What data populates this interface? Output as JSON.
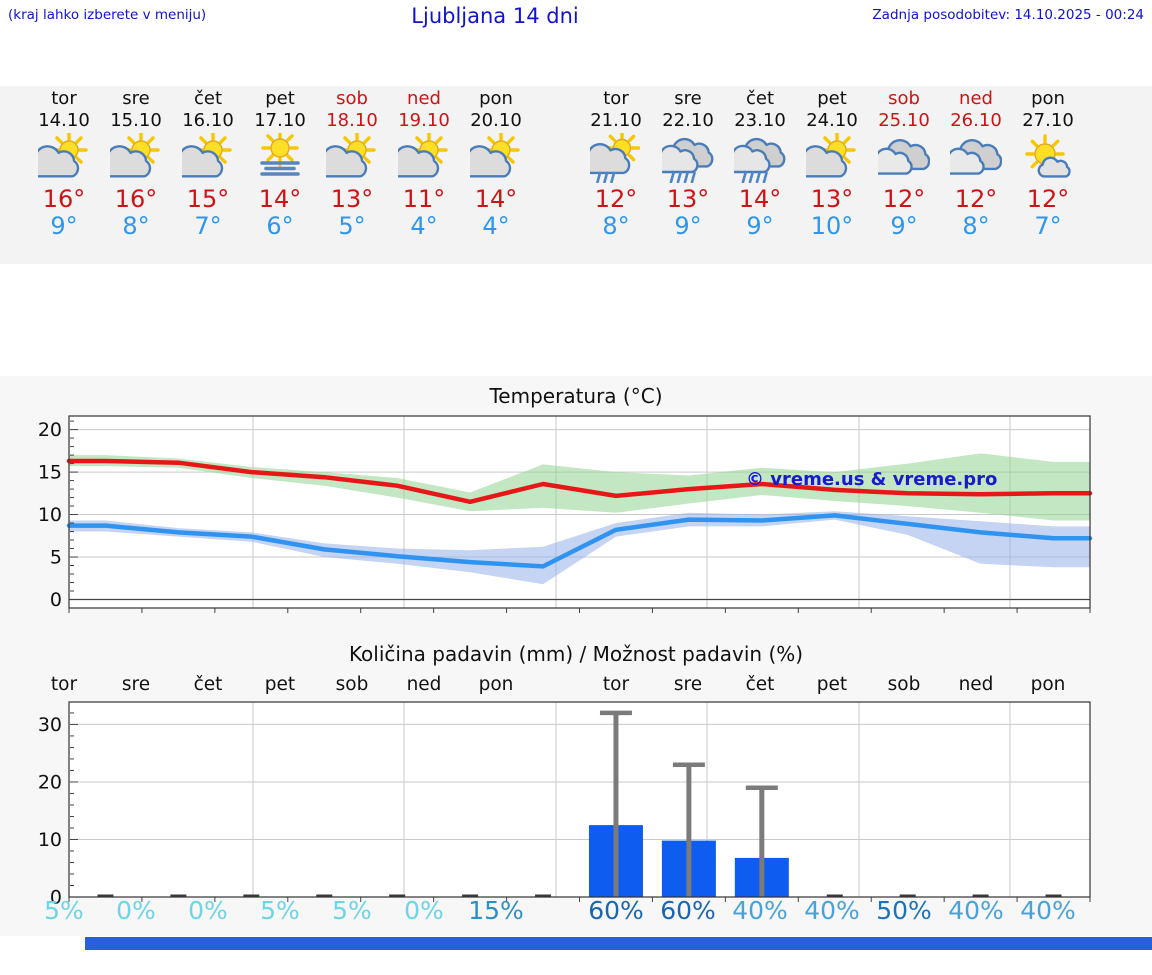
{
  "page": {
    "note": "(kraj lahko izberete v meniju)",
    "title": "Ljubljana 14 dni",
    "updated": "Zadnja posodobitev: 14.10.2025 - 00:24"
  },
  "colors": {
    "link_blue": "#1212cf",
    "day_black": "#111111",
    "weekend_red": "#cc1414",
    "high_red": "#cc1414",
    "low_blue": "#2d96f0",
    "bottom_bar": "#2b5fd9"
  },
  "forecast": {
    "days": [
      {
        "name": "tor",
        "date": "14.10",
        "weekend": false,
        "icon": "sun-cloud",
        "high": "16°",
        "low": "9°"
      },
      {
        "name": "sre",
        "date": "15.10",
        "weekend": false,
        "icon": "sun-cloud",
        "high": "16°",
        "low": "8°"
      },
      {
        "name": "čet",
        "date": "16.10",
        "weekend": false,
        "icon": "sun-cloud",
        "high": "15°",
        "low": "7°"
      },
      {
        "name": "pet",
        "date": "17.10",
        "weekend": false,
        "icon": "fog-sun",
        "high": "14°",
        "low": "6°"
      },
      {
        "name": "sob",
        "date": "18.10",
        "weekend": true,
        "icon": "sun-cloud",
        "high": "13°",
        "low": "5°"
      },
      {
        "name": "ned",
        "date": "19.10",
        "weekend": true,
        "icon": "sun-cloud",
        "high": "11°",
        "low": "4°"
      },
      {
        "name": "pon",
        "date": "20.10",
        "weekend": false,
        "icon": "sun-cloud",
        "high": "14°",
        "low": "4°"
      },
      {
        "name": "tor",
        "date": "21.10",
        "weekend": false,
        "icon": "sun-cloud-rain",
        "high": "12°",
        "low": "8°"
      },
      {
        "name": "sre",
        "date": "22.10",
        "weekend": false,
        "icon": "clouds-rain",
        "high": "13°",
        "low": "9°"
      },
      {
        "name": "čet",
        "date": "23.10",
        "weekend": false,
        "icon": "clouds-rain",
        "high": "14°",
        "low": "9°"
      },
      {
        "name": "pet",
        "date": "24.10",
        "weekend": false,
        "icon": "sun-cloud",
        "high": "13°",
        "low": "10°"
      },
      {
        "name": "sob",
        "date": "25.10",
        "weekend": true,
        "icon": "clouds",
        "high": "12°",
        "low": "9°"
      },
      {
        "name": "ned",
        "date": "26.10",
        "weekend": true,
        "icon": "clouds",
        "high": "12°",
        "low": "8°"
      },
      {
        "name": "pon",
        "date": "27.10",
        "weekend": false,
        "icon": "sun-small-cloud",
        "high": "12°",
        "low": "7°"
      }
    ]
  },
  "chart_data": [
    {
      "type": "line",
      "title": "Temperatura (°C)",
      "watermark": "© vreme.us & vreme.pro",
      "x": [
        "14.10",
        "15.10",
        "16.10",
        "17.10",
        "18.10",
        "19.10",
        "20.10",
        "21.10",
        "22.10",
        "23.10",
        "24.10",
        "25.10",
        "26.10",
        "27.10"
      ],
      "yticks": [
        0,
        5,
        10,
        15,
        20
      ],
      "ylim": [
        -1,
        21.6
      ],
      "grid": true,
      "series": [
        {
          "name": "max-temp",
          "color": "#e81717",
          "values": [
            16.3,
            16.1,
            15.0,
            14.4,
            13.4,
            11.5,
            13.6,
            12.2,
            13.0,
            13.6,
            12.9,
            12.5,
            12.4,
            12.5
          ]
        },
        {
          "name": "min-temp",
          "color": "#3093f0",
          "values": [
            8.7,
            7.9,
            7.4,
            5.9,
            5.1,
            4.4,
            3.9,
            8.2,
            9.4,
            9.3,
            9.9,
            8.9,
            7.9,
            7.2
          ]
        }
      ],
      "bands": [
        {
          "name": "max-temp-range",
          "color": "#8fd48f",
          "upper": [
            17.0,
            16.6,
            15.6,
            15.0,
            14.3,
            12.6,
            15.9,
            15.0,
            14.6,
            15.5,
            15.0,
            16.0,
            17.2,
            16.2
          ],
          "lower": [
            15.7,
            15.5,
            14.3,
            13.4,
            12.0,
            10.4,
            10.8,
            10.2,
            11.3,
            12.3,
            11.6,
            11.0,
            10.2,
            9.3
          ]
        },
        {
          "name": "min-temp-range",
          "color": "#93b1e8",
          "upper": [
            9.3,
            8.4,
            7.9,
            6.6,
            6.0,
            5.8,
            6.2,
            9.0,
            10.2,
            10.0,
            10.4,
            9.8,
            9.2,
            8.6
          ],
          "lower": [
            8.0,
            7.4,
            6.8,
            5.0,
            4.2,
            3.2,
            1.8,
            7.4,
            8.6,
            8.6,
            9.4,
            7.6,
            4.2,
            3.8
          ]
        }
      ]
    },
    {
      "type": "bar",
      "title": "Količina padavin (mm) / Možnost padavin (%)",
      "categories": [
        "tor",
        "sre",
        "čet",
        "pet",
        "sob",
        "ned",
        "pon",
        "tor",
        "sre",
        "čet",
        "pet",
        "sob",
        "ned",
        "pon"
      ],
      "yticks": [
        0,
        10,
        20,
        30
      ],
      "ylim": [
        0,
        33.9
      ],
      "values": [
        0,
        0,
        0,
        0,
        0,
        0,
        0,
        12.5,
        9.8,
        6.8,
        0,
        0,
        0,
        0
      ],
      "whisker_max": [
        0,
        0,
        0,
        0,
        0,
        0,
        0,
        32,
        23,
        19,
        0,
        0,
        0,
        0
      ],
      "bar_color": "#0f5cf0",
      "whisker_color": "#7b7b7b",
      "probability": [
        {
          "pct": 5,
          "color": "#6fd5e5"
        },
        {
          "pct": 0,
          "color": "#6fd5e5"
        },
        {
          "pct": 0,
          "color": "#6fd5e5"
        },
        {
          "pct": 5,
          "color": "#6fd5e5"
        },
        {
          "pct": 5,
          "color": "#6fd5e5"
        },
        {
          "pct": 0,
          "color": "#6fd5e5"
        },
        {
          "pct": 15,
          "color": "#2f8fc4"
        },
        {
          "pct": 60,
          "color": "#1a66b0"
        },
        {
          "pct": 60,
          "color": "#1a66b0"
        },
        {
          "pct": 40,
          "color": "#49a2d9"
        },
        {
          "pct": 40,
          "color": "#49a2d9"
        },
        {
          "pct": 50,
          "color": "#1d72ba"
        },
        {
          "pct": 40,
          "color": "#49a2d9"
        },
        {
          "pct": 40,
          "color": "#49a2d9"
        }
      ]
    }
  ]
}
